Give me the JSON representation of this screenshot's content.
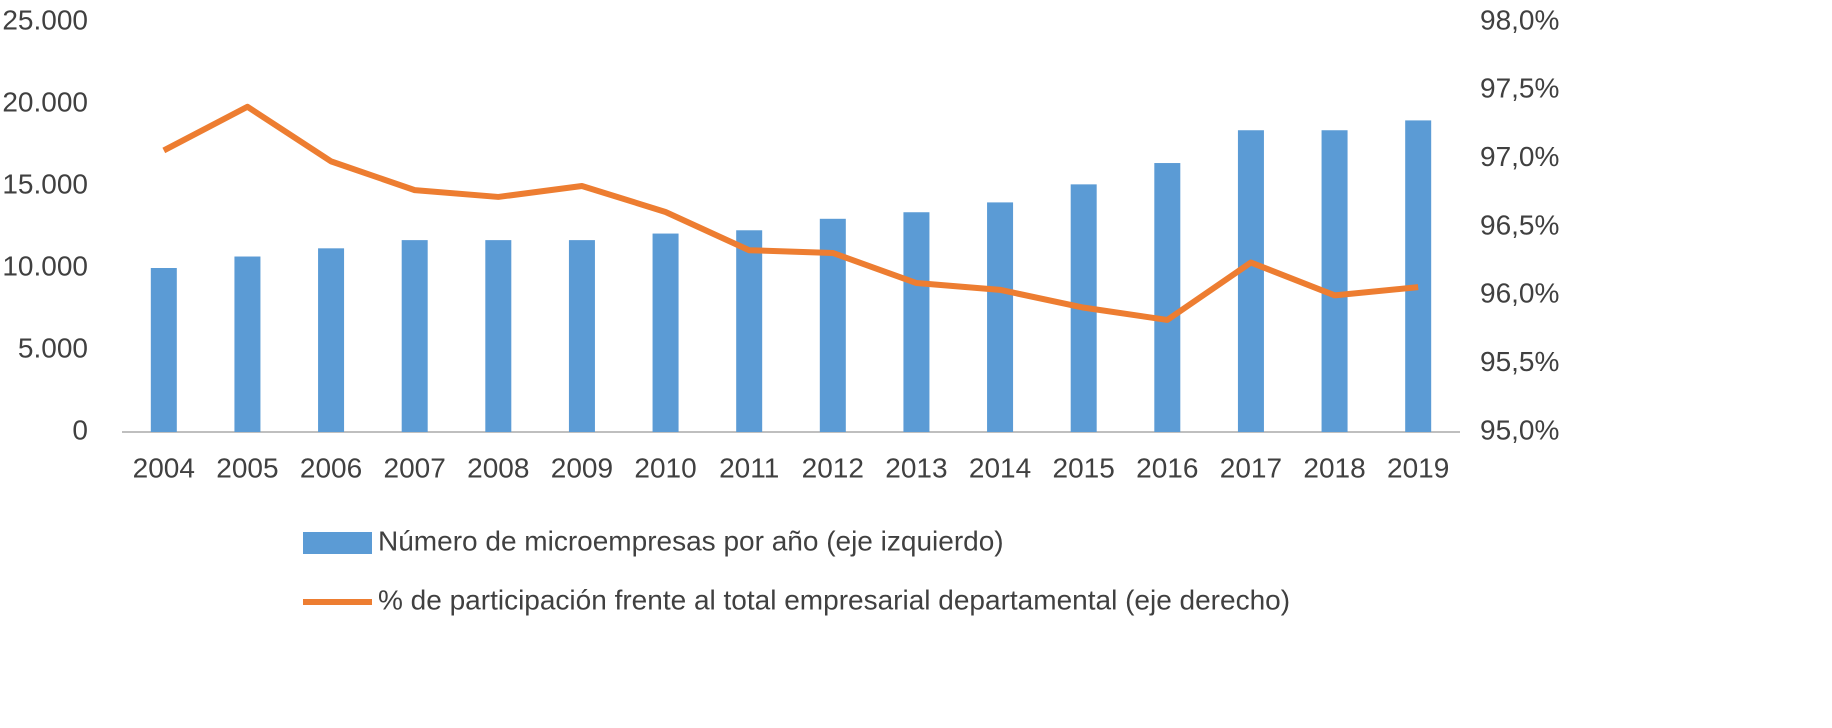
{
  "chart_data": {
    "type": "bar-line",
    "categories": [
      "2004",
      "2005",
      "2006",
      "2007",
      "2008",
      "2009",
      "2010",
      "2011",
      "2012",
      "2013",
      "2014",
      "2015",
      "2016",
      "2017",
      "2018",
      "2019"
    ],
    "series": [
      {
        "name": "Número de microempresas por año (eje izquierdo)",
        "type": "bar",
        "color": "#5b9bd5",
        "values": [
          10000,
          10700,
          11200,
          11700,
          11700,
          11700,
          12100,
          12300,
          13000,
          13400,
          14000,
          15100,
          16400,
          18400,
          18400,
          19000
        ]
      },
      {
        "name": "% de participación frente al total empresarial departamental (eje derecho)",
        "type": "line",
        "axis": "y2",
        "color": "#ed7d31",
        "values": [
          97.06,
          97.38,
          96.98,
          96.77,
          96.72,
          96.8,
          96.61,
          96.33,
          96.31,
          96.09,
          96.04,
          95.91,
          95.82,
          96.24,
          96.0,
          96.06
        ]
      }
    ],
    "ylim": [
      0,
      25000
    ],
    "yticks": [
      0,
      {
        "value": 5000,
        "label": "5.000"
      },
      {
        "value": 10000,
        "label": "10.000"
      },
      {
        "value": 15000,
        "label": "15.000"
      },
      {
        "value": 20000,
        "label": "20.000"
      },
      {
        "value": 25000,
        "label": "25.000"
      }
    ],
    "y2lim": [
      95,
      98
    ],
    "y2ticks": [
      {
        "value": 95,
        "label": "95,0%"
      },
      {
        "value": 95.5,
        "label": "95,5%"
      },
      {
        "value": 96,
        "label": "96,0%"
      },
      {
        "value": 96.5,
        "label": "96,5%"
      },
      {
        "value": 97,
        "label": "97,0%"
      },
      {
        "value": 97.5,
        "label": "97,5%"
      },
      {
        "value": 98,
        "label": "98,0%"
      }
    ],
    "grid": false,
    "legend": "bottom"
  }
}
